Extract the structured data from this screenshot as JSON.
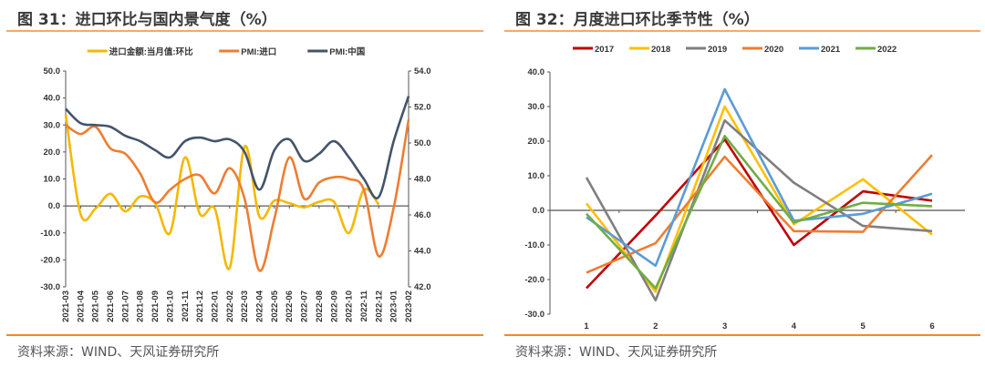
{
  "left": {
    "title": "图 31：进口环比与国内景气度（%）",
    "source": "资料来源：WIND、天风证券研究所"
  },
  "right": {
    "title": "图 32：月度进口环比季节性（%）",
    "source": "资料来源：WIND、天风证券研究所"
  },
  "chart_data": [
    {
      "type": "line",
      "smooth": true,
      "categories": [
        "2021-03",
        "2021-04",
        "2021-05",
        "2021-06",
        "2021-07",
        "2021-08",
        "2021-09",
        "2021-10",
        "2021-11",
        "2021-12",
        "2022-01",
        "2022-02",
        "2022-03",
        "2022-04",
        "2022-05",
        "2022-06",
        "2022-07",
        "2022-08",
        "2022-09",
        "2022-10",
        "2022-11",
        "2022-12",
        "2023-01",
        "2023-02"
      ],
      "ylim": [
        -30,
        50
      ],
      "yticks": [
        "50.0",
        "40.0",
        "30.0",
        "20.0",
        "10.0",
        "0.0",
        "-10.0",
        "-20.0",
        "-30.0"
      ],
      "y2lim": [
        42,
        54
      ],
      "y2ticks": [
        "54.0",
        "52.0",
        "50.0",
        "48.0",
        "46.0",
        "44.0",
        "42.0"
      ],
      "negative_tick_color": "#e8202a",
      "legend_position": "top",
      "series": [
        {
          "name": "进口金额:当月值:环比",
          "axis": "left",
          "color": "#f5b800",
          "values": [
            34,
            -3,
            -1,
            4.5,
            -2,
            3.5,
            1,
            -10,
            18,
            -3,
            -1,
            -23,
            22,
            -4,
            2,
            1,
            -0.5,
            1.5,
            1.5,
            -10,
            6,
            0.5,
            null,
            null
          ]
        },
        {
          "name": "PMI:进口",
          "axis": "right",
          "color": "#ee7d31",
          "values": [
            51.0,
            50.5,
            50.9,
            49.7,
            49.4,
            48.3,
            46.7,
            47.4,
            48.0,
            48.2,
            47.2,
            48.6,
            46.9,
            42.9,
            45.8,
            49.2,
            46.9,
            47.8,
            48.1,
            48.0,
            47.4,
            43.7,
            46.4,
            51.3
          ]
        },
        {
          "name": "PMI:中国",
          "axis": "right",
          "color": "#44546a",
          "values": [
            51.9,
            51.1,
            51.0,
            50.9,
            50.4,
            50.1,
            49.6,
            49.2,
            50.1,
            50.3,
            50.1,
            50.2,
            49.5,
            47.4,
            49.6,
            50.2,
            49.0,
            49.4,
            50.1,
            49.2,
            48.0,
            47.0,
            50.1,
            52.6
          ]
        }
      ]
    },
    {
      "type": "line",
      "categories": [
        "1",
        "2",
        "3",
        "4",
        "5",
        "6"
      ],
      "ylim": [
        -30,
        40
      ],
      "yticks": [
        "40.0",
        "30.0",
        "20.0",
        "10.0",
        "0.0",
        "-10.0",
        "-20.0",
        "-30.0"
      ],
      "negative_tick_color": "#e8202a",
      "legend_position": "top",
      "series": [
        {
          "name": "2017",
          "color": "#c00000",
          "values": [
            -22.5,
            -1.5,
            20.5,
            -10,
            5.5,
            2.8
          ]
        },
        {
          "name": "2018",
          "color": "#ffc000",
          "values": [
            2,
            -23.5,
            30,
            -4,
            9,
            -7
          ]
        },
        {
          "name": "2019",
          "color": "#7f7f7f",
          "values": [
            9.5,
            -26,
            26,
            8,
            -4.5,
            -6
          ]
        },
        {
          "name": "2020",
          "color": "#ed7d31",
          "values": [
            -18,
            -9.5,
            15.5,
            -6,
            -6.2,
            16
          ]
        },
        {
          "name": "2021",
          "color": "#5b9bd5",
          "values": [
            -2,
            -16,
            35,
            -3,
            -1,
            4.8
          ]
        },
        {
          "name": "2022",
          "color": "#70ad47",
          "values": [
            -1,
            -22.5,
            21.5,
            -3.5,
            2.2,
            1.2
          ]
        }
      ]
    }
  ]
}
